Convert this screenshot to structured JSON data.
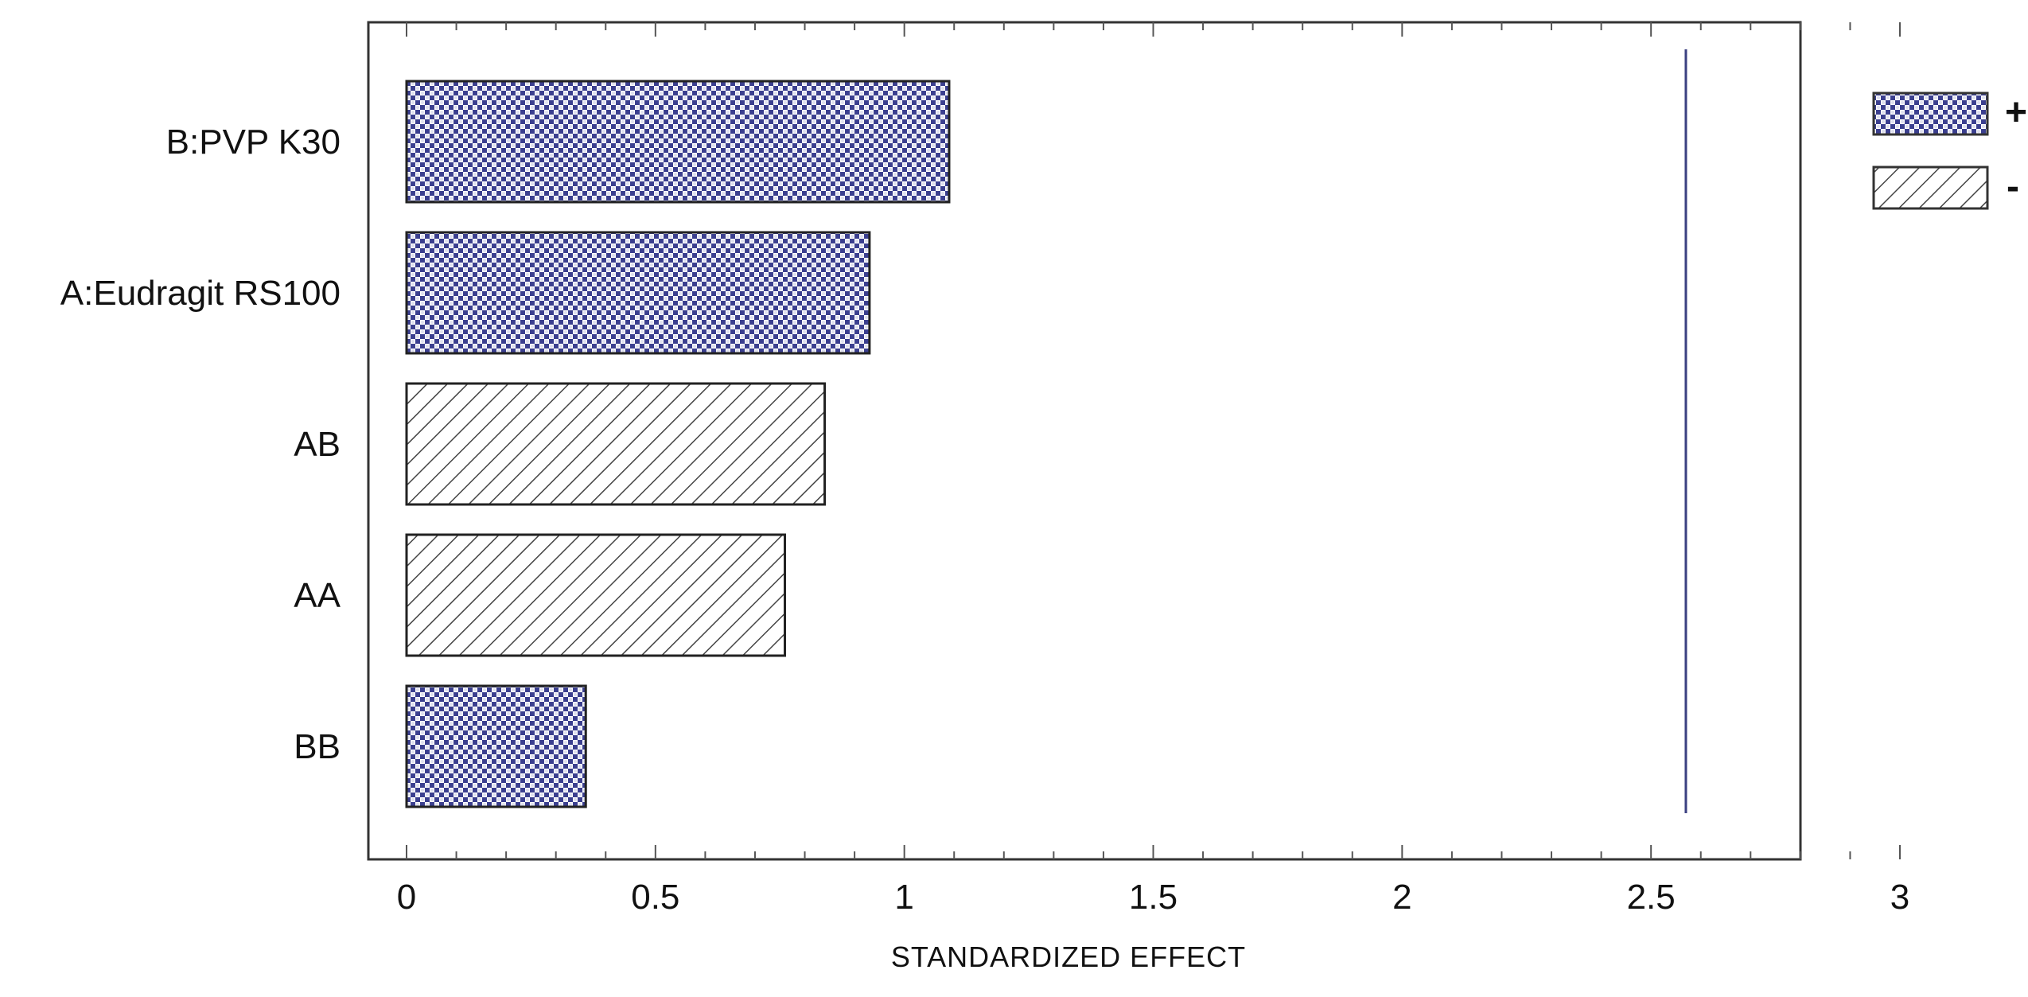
{
  "chart_data": {
    "type": "bar",
    "orientation": "horizontal",
    "title": "",
    "xlabel": "STANDARDIZED EFFECT",
    "ylabel": "",
    "xlim": [
      0,
      3
    ],
    "xticks": [
      0,
      0.5,
      1,
      1.5,
      2,
      2.5,
      3
    ],
    "xtick_labels": [
      "0",
      "0.5",
      "1",
      "1.5",
      "2",
      "2.5",
      "3"
    ],
    "categories": [
      "B:PVP K30",
      "A:Eudragit RS100",
      "AB",
      "AA",
      "BB"
    ],
    "values": [
      1.09,
      0.93,
      0.84,
      0.76,
      0.36
    ],
    "signs": [
      "+",
      "+",
      "-",
      "-",
      "+"
    ],
    "reference_line": 2.57,
    "grid": false,
    "legend": {
      "placement": "top-right",
      "entries": [
        {
          "label": "+",
          "pattern": "dots",
          "color": "#3b3f8f"
        },
        {
          "label": "-",
          "pattern": "hatch",
          "color": "#444444"
        }
      ]
    },
    "colors": {
      "positive": "#3b3f8f",
      "negative": "#444444",
      "reference_line": "#3a3f80",
      "frame": "#333333"
    }
  }
}
